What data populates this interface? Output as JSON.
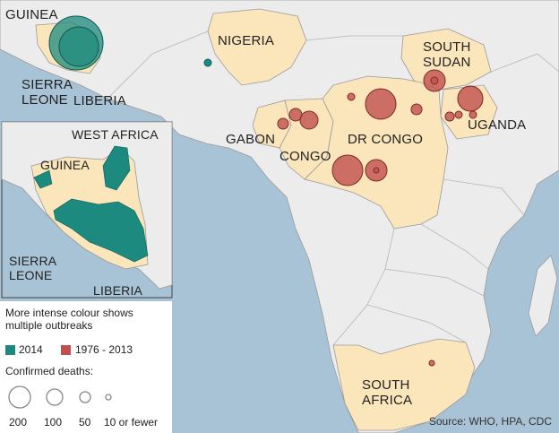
{
  "map": {
    "countries": {
      "guinea": "GUINEA",
      "sierra_leone": "SIERRA\nLEONE",
      "liberia": "LIBERIA",
      "nigeria": "NIGERIA",
      "south_sudan": "SOUTH\nSUDAN",
      "uganda": "UGANDA",
      "gabon": "GABON",
      "congo": "CONGO",
      "dr_congo": "DR CONGO",
      "south_africa": "SOUTH\nAFRICA"
    },
    "inset": {
      "title": "WEST AFRICA",
      "guinea": "GUINEA",
      "sierra_leone": "SIERRA\nLEONE",
      "liberia": "LIBERIA"
    },
    "colors": {
      "ocean": "#a9c3d6",
      "land_other": "#ececec",
      "land_affected": "#fbe5bb",
      "outbreak_2014": "#1c8a7e",
      "outbreak_1976_2013": "#c0504d",
      "border": "#9a9a9a"
    }
  },
  "legend": {
    "note": "More intense colour shows\nmultiple outbreaks",
    "series": [
      {
        "label": "2014",
        "color": "#1c8a7e"
      },
      {
        "label": "1976 - 2013",
        "color": "#c0504d"
      }
    ],
    "size_title": "Confirmed deaths:",
    "sizes": [
      "200",
      "100",
      "50",
      "10 or fewer"
    ]
  },
  "source": "Source: WHO, HPA, CDC"
}
